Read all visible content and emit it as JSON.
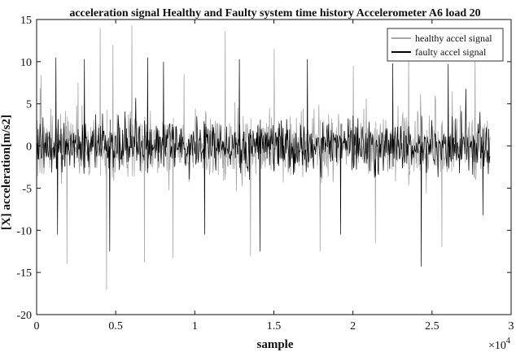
{
  "chart_data": {
    "type": "line",
    "title": "acceleration signal Healthy and Faulty system time history Accelerometer  A6 load 20",
    "xlabel": "sample",
    "ylabel": "[X] acceleration[m/s2]",
    "x_multiplier_label": "×10",
    "x_multiplier_exponent": "4",
    "xlim": [
      0,
      30000
    ],
    "ylim": [
      -20,
      15
    ],
    "xticks": [
      0,
      5000,
      10000,
      15000,
      20000,
      25000,
      30000
    ],
    "xtick_labels": [
      "0",
      "0.5",
      "1",
      "1.5",
      "2",
      "2.5",
      "3"
    ],
    "yticks": [
      -20,
      -15,
      -10,
      -5,
      0,
      5,
      10,
      15
    ],
    "ytick_labels": [
      "-20",
      "-15",
      "-10",
      "-5",
      "0",
      "5",
      "10",
      "15"
    ],
    "grid": false,
    "legend_position": "top-right",
    "n_samples": 28700,
    "series": [
      {
        "name": "healthy accel signal",
        "color": "#a6a6a6",
        "typical_amplitude": 3.0,
        "peaks": [
          {
            "x": 200,
            "y": 6.8
          },
          {
            "x": 1900,
            "y": -14.0
          },
          {
            "x": 2600,
            "y": 7.5
          },
          {
            "x": 4000,
            "y": 14.0
          },
          {
            "x": 4400,
            "y": -17.1
          },
          {
            "x": 4800,
            "y": 12.0
          },
          {
            "x": 6000,
            "y": 14.3
          },
          {
            "x": 6800,
            "y": -13.8
          },
          {
            "x": 8600,
            "y": -13.3
          },
          {
            "x": 9300,
            "y": 8.5
          },
          {
            "x": 11900,
            "y": 13.6
          },
          {
            "x": 13500,
            "y": -13.0
          },
          {
            "x": 15000,
            "y": 11.5
          },
          {
            "x": 17900,
            "y": -12.5
          },
          {
            "x": 20000,
            "y": 9.5
          },
          {
            "x": 21400,
            "y": -11.5
          },
          {
            "x": 23500,
            "y": 11.0
          },
          {
            "x": 25600,
            "y": -12.0
          },
          {
            "x": 27700,
            "y": 11.2
          }
        ]
      },
      {
        "name": "faulty accel signal",
        "color": "#000000",
        "typical_amplitude": 2.3,
        "peaks": [
          {
            "x": 1200,
            "y": 10.5
          },
          {
            "x": 1300,
            "y": -10.5
          },
          {
            "x": 3000,
            "y": 10.3
          },
          {
            "x": 4600,
            "y": -12.5
          },
          {
            "x": 7000,
            "y": 10.5
          },
          {
            "x": 8000,
            "y": 10.0
          },
          {
            "x": 10600,
            "y": -10.5
          },
          {
            "x": 12800,
            "y": 10.3
          },
          {
            "x": 14100,
            "y": -12.5
          },
          {
            "x": 17100,
            "y": 10.3
          },
          {
            "x": 19200,
            "y": -10.5
          },
          {
            "x": 22500,
            "y": 9.8
          },
          {
            "x": 24300,
            "y": -14.3
          },
          {
            "x": 26000,
            "y": 9.7
          },
          {
            "x": 28200,
            "y": -8.2
          }
        ]
      }
    ]
  }
}
